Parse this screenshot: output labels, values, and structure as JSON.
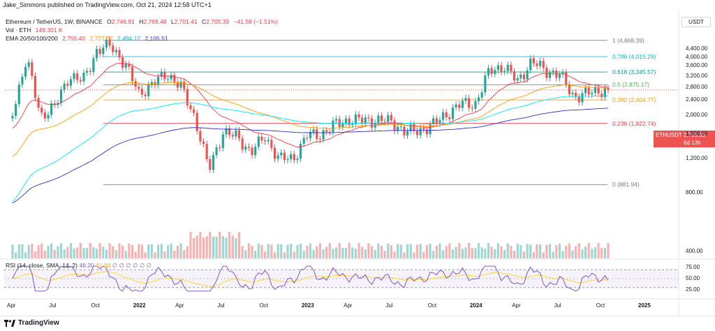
{
  "header": {
    "publisher": "Jake_Simmons published on TradingView.com, Oct 21, 2024 12:58 UTC+1"
  },
  "legend": {
    "symbol": "Ethereum / TetherUS, 1W, BINANCE",
    "ohlc": {
      "o_label": "O",
      "o": "2,746.91",
      "h_label": "H",
      "h": "2,769.48",
      "l_label": "L",
      "l": "2,701.41",
      "c_label": "C",
      "c": "2,705.33",
      "change": "−41.58 (−1.51%)"
    },
    "vol_label": "Vol · ETH",
    "vol_value": "149.301 K",
    "ema_label": "EMA 20/50/100/200",
    "ema_values": [
      "2,755.40",
      "2,727.07",
      "2,494.12",
      "2,105.51"
    ]
  },
  "currency": "USDT",
  "price_tag": {
    "symbol": "ETHUSDT",
    "price": "2,705.33",
    "time": "6d 13h"
  },
  "rsi": {
    "title": "RSI (14, close, SMA, 14, 2)",
    "value1": "48.20",
    "value2": "41.88",
    "placeholders": "∅ ∅ ∅ ∅ ∅ ∅"
  },
  "footer": {
    "brand": "TradingView"
  },
  "colors": {
    "up": "#26a69a",
    "down": "#ef5350",
    "ema20": "#f23645",
    "ema50": "#ff9800",
    "ema100": "#00e5ff",
    "ema200": "#2e2ec8",
    "fib1": "#787b86",
    "fib786": "#00bcd4",
    "fib618": "#089981",
    "fib05": "#4caf50",
    "fib382": "#ff9800",
    "fib236": "#f23645",
    "fib0": "#787b86",
    "rsi": "#7e57c2",
    "rsi_ma": "#fdd835"
  },
  "chart_data": {
    "type": "candlestick",
    "title": "Ethereum / TetherUS, 1W, BINANCE",
    "y_scale": "log",
    "y_ticks": [
      "4,400.00",
      "4,000.00",
      "3,600.00",
      "3,200.00",
      "2,800.00",
      "2,400.00",
      "2,000.00",
      "1,600.00",
      "1,200.00",
      "800.00",
      "400.00"
    ],
    "x_ticks": [
      "Apr",
      "Jul",
      "Oct",
      "2022",
      "Apr",
      "Jul",
      "Oct",
      "2023",
      "Apr",
      "Jul",
      "Oct",
      "2024",
      "Apr",
      "Jul",
      "Oct",
      "2025"
    ],
    "rsi_ticks": [
      "75.00",
      "50.00",
      "25.00"
    ],
    "fib_levels": [
      {
        "label": "1 (4,868.39)",
        "value": 4868.39
      },
      {
        "label": "0.786 (4,015.29)",
        "value": 4015.29
      },
      {
        "label": "0.618 (3,345.57)",
        "value": 3345.57
      },
      {
        "label": "0.5 (2,875.17)",
        "value": 2875.17
      },
      {
        "label": "0.382 (2,404.77)",
        "value": 2404.77
      },
      {
        "label": "0.236 (1,822.74)",
        "value": 1822.74
      },
      {
        "label": "0 (881.94)",
        "value": 881.94
      }
    ],
    "weekly_close_path": [
      {
        "date": "2021-04",
        "close": 2100
      },
      {
        "date": "2021-05",
        "close": 3900
      },
      {
        "date": "2021-06",
        "close": 2000
      },
      {
        "date": "2021-07",
        "close": 2200
      },
      {
        "date": "2021-08",
        "close": 3200
      },
      {
        "date": "2021-09",
        "close": 3000
      },
      {
        "date": "2021-10",
        "close": 4300
      },
      {
        "date": "2021-11",
        "close": 4600
      },
      {
        "date": "2021-12",
        "close": 3700
      },
      {
        "date": "2022-01",
        "close": 2600
      },
      {
        "date": "2022-02",
        "close": 2900
      },
      {
        "date": "2022-03",
        "close": 3300
      },
      {
        "date": "2022-04",
        "close": 2800
      },
      {
        "date": "2022-05",
        "close": 1950
      },
      {
        "date": "2022-06",
        "close": 1050
      },
      {
        "date": "2022-07",
        "close": 1650
      },
      {
        "date": "2022-08",
        "close": 1550
      },
      {
        "date": "2022-09",
        "close": 1300
      },
      {
        "date": "2022-10",
        "close": 1550
      },
      {
        "date": "2022-11",
        "close": 1200
      },
      {
        "date": "2022-12",
        "close": 1200
      },
      {
        "date": "2023-01",
        "close": 1580
      },
      {
        "date": "2023-02",
        "close": 1600
      },
      {
        "date": "2023-03",
        "close": 1800
      },
      {
        "date": "2023-04",
        "close": 1900
      },
      {
        "date": "2023-05",
        "close": 1880
      },
      {
        "date": "2023-06",
        "close": 1900
      },
      {
        "date": "2023-07",
        "close": 1860
      },
      {
        "date": "2023-08",
        "close": 1650
      },
      {
        "date": "2023-09",
        "close": 1670
      },
      {
        "date": "2023-10",
        "close": 1800
      },
      {
        "date": "2023-11",
        "close": 2050
      },
      {
        "date": "2023-12",
        "close": 2300
      },
      {
        "date": "2024-01",
        "close": 2300
      },
      {
        "date": "2024-02",
        "close": 3400
      },
      {
        "date": "2024-03",
        "close": 3600
      },
      {
        "date": "2024-04",
        "close": 3000
      },
      {
        "date": "2024-05",
        "close": 3800
      },
      {
        "date": "2024-06",
        "close": 3400
      },
      {
        "date": "2024-07",
        "close": 3250
      },
      {
        "date": "2024-08",
        "close": 2500
      },
      {
        "date": "2024-09",
        "close": 2600
      },
      {
        "date": "2024-10",
        "close": 2705.33
      }
    ]
  }
}
